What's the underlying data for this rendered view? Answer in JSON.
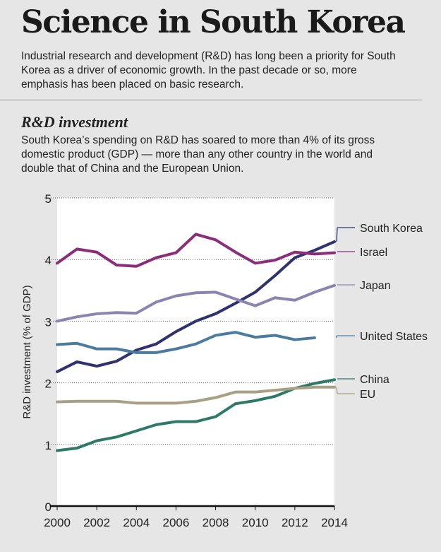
{
  "header": {
    "title": "Science in South Korea",
    "intro": "Industrial research and development (R&D) has long been a priority for South Korea as a driver of economic growth. In the past decade or so, more emphasis has been placed on basic research."
  },
  "section": {
    "title": "R&D investment",
    "description": "South Korea’s spending on R&D has soared to more than 4% of its gross domestic product (GDP) — more than any other country in the world and double that of China and the European Union."
  },
  "chart_data": {
    "type": "line",
    "title": "",
    "xlabel": "",
    "ylabel": "R&D investment (% of GDP)",
    "xlim": [
      2000,
      2014
    ],
    "ylim": [
      0,
      5
    ],
    "grid": true,
    "legend": "right (direct labels)",
    "x": [
      2000,
      2001,
      2002,
      2003,
      2004,
      2005,
      2006,
      2007,
      2008,
      2009,
      2010,
      2011,
      2012,
      2013,
      2014
    ],
    "xticks": [
      "2000",
      "2002",
      "2004",
      "2006",
      "2008",
      "2010",
      "2012",
      "2014"
    ],
    "yticks": [
      "0",
      "1",
      "2",
      "3",
      "4",
      "5"
    ],
    "series": [
      {
        "name": "South Korea",
        "color": "#2e3270",
        "values": [
          2.18,
          2.34,
          2.27,
          2.35,
          2.53,
          2.63,
          2.83,
          3.0,
          3.12,
          3.29,
          3.47,
          3.74,
          4.03,
          4.15,
          4.29
        ]
      },
      {
        "name": "Israel",
        "color": "#8b2d7a",
        "values": [
          3.94,
          4.17,
          4.12,
          3.91,
          3.89,
          4.03,
          4.11,
          4.41,
          4.32,
          4.12,
          3.94,
          3.99,
          4.12,
          4.09,
          4.11
        ]
      },
      {
        "name": "Japan",
        "color": "#8b84b0",
        "values": [
          3.0,
          3.07,
          3.12,
          3.14,
          3.13,
          3.31,
          3.41,
          3.46,
          3.47,
          3.36,
          3.25,
          3.38,
          3.34,
          3.47,
          3.58
        ]
      },
      {
        "name": "United States",
        "color": "#4b7ca0",
        "values": [
          2.62,
          2.64,
          2.55,
          2.55,
          2.49,
          2.49,
          2.55,
          2.63,
          2.77,
          2.82,
          2.74,
          2.77,
          2.7,
          2.73,
          null
        ]
      },
      {
        "name": "China",
        "color": "#2e7a6a",
        "values": [
          0.9,
          0.94,
          1.06,
          1.12,
          1.22,
          1.32,
          1.37,
          1.37,
          1.45,
          1.66,
          1.71,
          1.78,
          1.91,
          1.99,
          2.05
        ]
      },
      {
        "name": "EU",
        "color": "#a89f84",
        "values": [
          1.69,
          1.7,
          1.7,
          1.7,
          1.67,
          1.67,
          1.67,
          1.7,
          1.76,
          1.85,
          1.85,
          1.88,
          1.91,
          1.93,
          1.93
        ]
      }
    ]
  }
}
